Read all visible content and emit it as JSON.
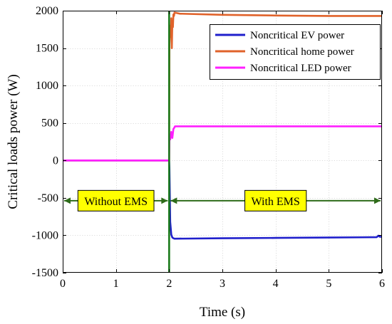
{
  "chart_data": {
    "type": "line",
    "xlabel": "Time (s)",
    "ylabel": "Critical loads power (W)",
    "xlim": [
      0,
      6
    ],
    "ylim": [
      -1500,
      2000
    ],
    "x_ticks": [
      0,
      1,
      2,
      3,
      4,
      5,
      6
    ],
    "y_ticks": [
      -1500,
      -1000,
      -500,
      0,
      500,
      1000,
      1500,
      2000
    ],
    "grid": true,
    "legend_position": "top-right",
    "series": [
      {
        "name": "Noncritical EV power",
        "color": "#1f1fcc",
        "x": [
          0,
          2.0,
          2.005,
          2.02,
          2.04,
          2.06,
          2.08,
          2.1,
          3,
          4,
          5,
          5.9,
          5.93,
          5.96,
          6
        ],
        "values": [
          0,
          0,
          -100,
          -820,
          -990,
          -1030,
          -1040,
          -1045,
          -1040,
          -1035,
          -1030,
          -1025,
          -1005,
          -1020,
          -1020
        ]
      },
      {
        "name": "Noncritical home power",
        "color": "#e0622a",
        "x": [
          0,
          2.0,
          2.005,
          2.02,
          2.03,
          2.04,
          2.05,
          2.06,
          2.07,
          2.08,
          2.09,
          2.1,
          2.2,
          3,
          4,
          5,
          6
        ],
        "values": [
          0,
          0,
          1550,
          1800,
          1650,
          1900,
          1500,
          1850,
          1780,
          1950,
          1930,
          1975,
          1960,
          1945,
          1935,
          1930,
          1930
        ]
      },
      {
        "name": "Noncritical LED power",
        "color": "#ff1fff",
        "x": [
          0,
          2.0,
          2.005,
          2.02,
          2.04,
          2.06,
          2.08,
          2.1,
          2.11,
          6
        ],
        "values": [
          0,
          0,
          320,
          280,
          380,
          300,
          420,
          440,
          455,
          455
        ]
      }
    ],
    "vertical_line": {
      "x": 2,
      "color": "#1a7a1a"
    },
    "annotations": {
      "without_ems": {
        "text": "Without EMS",
        "x_from": 0,
        "x_to": 2,
        "y": -500
      },
      "with_ems": {
        "text": "With EMS",
        "x_from": 2,
        "x_to": 6,
        "y": -500
      },
      "box_fill": "#ffff00",
      "arrow_color": "#2e6b1a"
    }
  }
}
